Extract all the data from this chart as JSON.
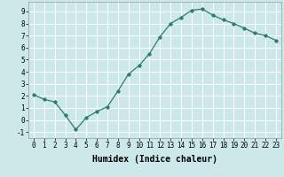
{
  "x": [
    0,
    1,
    2,
    3,
    4,
    5,
    6,
    7,
    8,
    9,
    10,
    11,
    12,
    13,
    14,
    15,
    16,
    17,
    18,
    19,
    20,
    21,
    22,
    23
  ],
  "y": [
    2.1,
    1.7,
    1.5,
    0.4,
    -0.8,
    0.2,
    0.7,
    1.1,
    2.4,
    3.8,
    4.5,
    5.5,
    6.9,
    8.0,
    8.5,
    9.1,
    9.2,
    8.7,
    8.3,
    8.0,
    7.6,
    7.2,
    7.0,
    6.6
  ],
  "line_color": "#2e7d6e",
  "marker": "D",
  "markersize": 1.8,
  "linewidth": 0.9,
  "xlabel": "Humidex (Indice chaleur)",
  "xlim": [
    -0.5,
    23.5
  ],
  "ylim": [
    -1.5,
    9.8
  ],
  "yticks": [
    -1,
    0,
    1,
    2,
    3,
    4,
    5,
    6,
    7,
    8,
    9
  ],
  "xticks": [
    0,
    1,
    2,
    3,
    4,
    5,
    6,
    7,
    8,
    9,
    10,
    11,
    12,
    13,
    14,
    15,
    16,
    17,
    18,
    19,
    20,
    21,
    22,
    23
  ],
  "background_color": "#cce8e8",
  "grid_color": "#ffffff",
  "tick_fontsize": 5.5,
  "label_fontsize": 7.0
}
